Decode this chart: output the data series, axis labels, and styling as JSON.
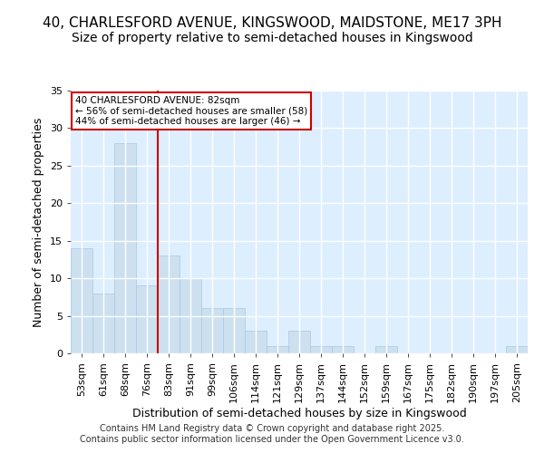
{
  "title1": "40, CHARLESFORD AVENUE, KINGSWOOD, MAIDSTONE, ME17 3PH",
  "title2": "Size of property relative to semi-detached houses in Kingswood",
  "xlabel": "Distribution of semi-detached houses by size in Kingswood",
  "ylabel": "Number of semi-detached properties",
  "categories": [
    "53sqm",
    "61sqm",
    "68sqm",
    "76sqm",
    "83sqm",
    "91sqm",
    "99sqm",
    "106sqm",
    "114sqm",
    "121sqm",
    "129sqm",
    "137sqm",
    "144sqm",
    "152sqm",
    "159sqm",
    "167sqm",
    "175sqm",
    "182sqm",
    "190sqm",
    "197sqm",
    "205sqm"
  ],
  "values": [
    14,
    8,
    28,
    9,
    13,
    10,
    6,
    6,
    3,
    1,
    3,
    1,
    1,
    0,
    1,
    0,
    0,
    0,
    0,
    0,
    1
  ],
  "bar_color": "#cce0f0",
  "bar_edgecolor": "#aac8e0",
  "vline_x_index": 4,
  "vline_color": "#cc0000",
  "ylim": [
    0,
    35
  ],
  "yticks": [
    0,
    5,
    10,
    15,
    20,
    25,
    30,
    35
  ],
  "annotation_title": "40 CHARLESFORD AVENUE: 82sqm",
  "annotation_line1": "← 56% of semi-detached houses are smaller (58)",
  "annotation_line2": "44% of semi-detached houses are larger (46) →",
  "annotation_box_edgecolor": "#cc0000",
  "footer1": "Contains HM Land Registry data © Crown copyright and database right 2025.",
  "footer2": "Contains public sector information licensed under the Open Government Licence v3.0.",
  "background_color": "#ffffff",
  "plot_background": "#ddeeff",
  "grid_color": "#ffffff",
  "title1_fontsize": 11,
  "title2_fontsize": 10,
  "axis_fontsize": 9,
  "tick_fontsize": 8,
  "footer_fontsize": 7
}
